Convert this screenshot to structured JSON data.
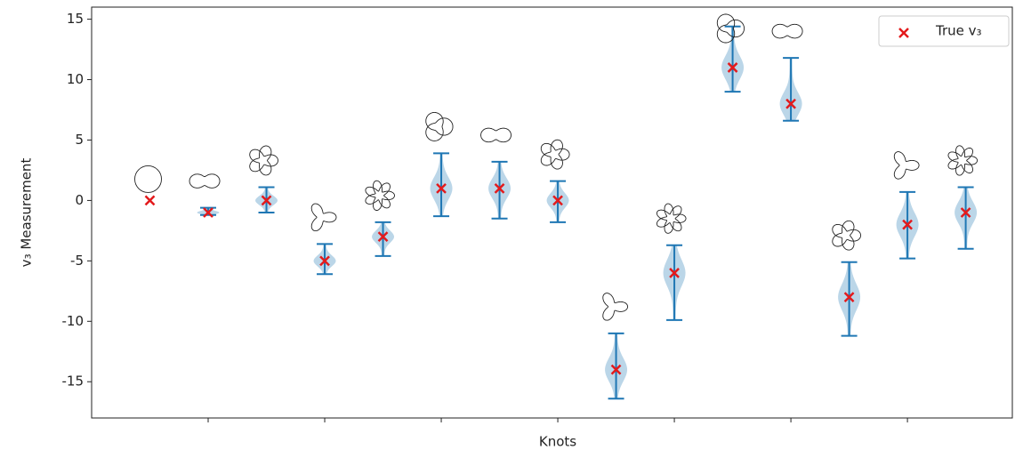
{
  "chart_data": {
    "type": "violin",
    "x": [
      1,
      2,
      3,
      4,
      5,
      6,
      7,
      8,
      9,
      10,
      11,
      12,
      13,
      14,
      15
    ],
    "xlabel": "Knots",
    "ylabel": "v₃ Measurement",
    "xlim": [
      0,
      15.8
    ],
    "xticks": [
      2,
      4,
      6,
      8,
      10,
      12,
      14
    ],
    "ylim": [
      -18,
      16
    ],
    "yticks": [
      -15,
      -10,
      -5,
      0,
      5,
      10,
      15
    ],
    "range_color": "#1f77b4",
    "min": [
      null,
      -1.2,
      -1.0,
      -6.1,
      -4.6,
      -1.3,
      -1.5,
      -1.8,
      -16.4,
      -9.9,
      9.0,
      6.6,
      -11.2,
      -4.8,
      -4.0
    ],
    "max": [
      null,
      -0.6,
      1.1,
      -3.6,
      -1.8,
      3.9,
      3.2,
      1.6,
      -11.0,
      -3.7,
      14.4,
      11.8,
      -5.1,
      0.7,
      1.1
    ],
    "series": [
      {
        "name": "True v₃",
        "color": "#e31a1c",
        "values": [
          0,
          -1,
          0,
          -5,
          -3,
          1,
          1,
          0,
          -14,
          -6,
          11,
          8,
          -8,
          -2,
          -1
        ]
      }
    ],
    "legend": "upper right"
  }
}
